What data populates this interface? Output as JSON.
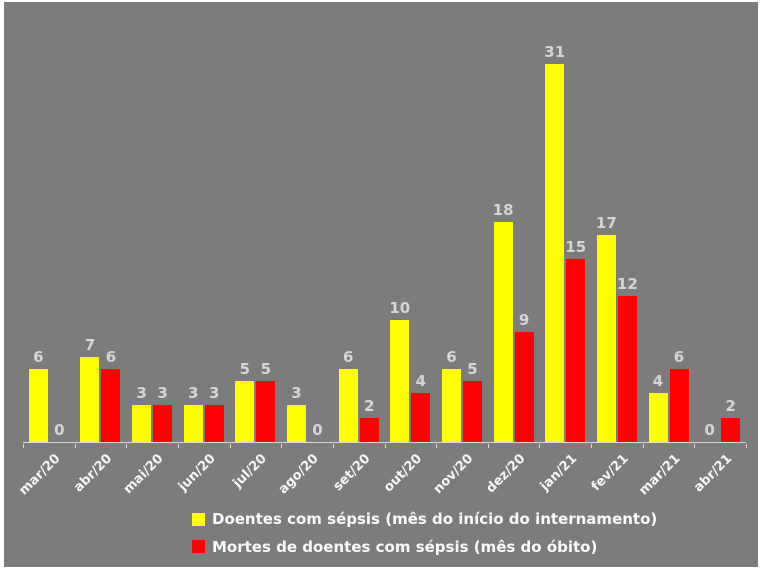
{
  "chart_data": {
    "type": "bar",
    "categories": [
      "mar/20",
      "abr/20",
      "mai/20",
      "jun/20",
      "jul/20",
      "ago/20",
      "set/20",
      "out/20",
      "nov/20",
      "dez/20",
      "jan/21",
      "fev/21",
      "mar/21",
      "abr/21"
    ],
    "series": [
      {
        "name": "Doentes com sépsis (mês do início do internamento)",
        "color": "#ffff00",
        "values": [
          6,
          7,
          3,
          3,
          5,
          3,
          6,
          10,
          6,
          18,
          31,
          17,
          4,
          0
        ]
      },
      {
        "name": "Mortes de doentes com sépsis (mês do óbito)",
        "color": "#ff0000",
        "values": [
          0,
          6,
          3,
          3,
          5,
          0,
          2,
          4,
          5,
          9,
          15,
          12,
          6,
          2
        ]
      }
    ],
    "title": "",
    "xlabel": "",
    "ylabel": "",
    "ylim": [
      0,
      31
    ],
    "grid": false,
    "data_labels": true,
    "legend_position": "bottom",
    "background_color": "#7c7c7c",
    "axis_color": "#d9d9d9",
    "data_label_color": "#d6d6d6",
    "tick_label_color": "#f7f7f7",
    "legend_text_color": "#fafafa"
  }
}
